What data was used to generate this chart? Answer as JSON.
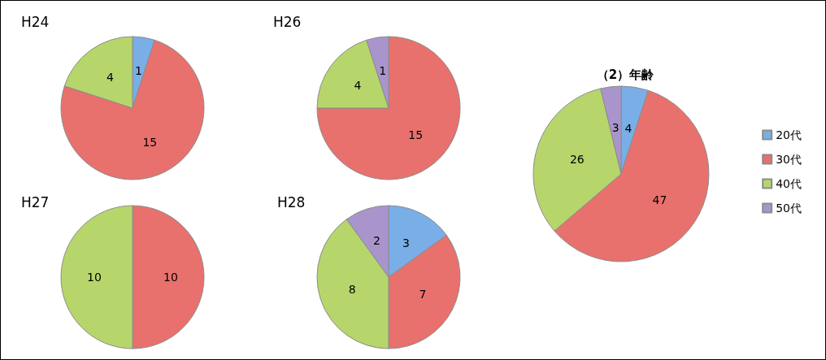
{
  "chart_data": [
    {
      "type": "pie",
      "title": "H24",
      "categories": [
        null,
        null,
        null
      ],
      "values": [
        1,
        15,
        4
      ],
      "colors": [
        "#7aaee6",
        "#e8716d",
        "#b6d66b"
      ],
      "data_labels": true,
      "legend": false
    },
    {
      "type": "pie",
      "title": "H26",
      "categories": [
        null,
        null,
        null
      ],
      "values": [
        15,
        4,
        1
      ],
      "colors": [
        "#e8716d",
        "#b6d66b",
        "#a995cc"
      ],
      "data_labels": true,
      "legend": false
    },
    {
      "type": "pie",
      "title": "H27",
      "categories": [
        null,
        null
      ],
      "values": [
        10,
        10
      ],
      "colors": [
        "#e8716d",
        "#b6d66b"
      ],
      "data_labels": true,
      "legend": false
    },
    {
      "type": "pie",
      "title": "H28",
      "categories": [
        null,
        null,
        null,
        null
      ],
      "values": [
        3,
        7,
        8,
        2
      ],
      "colors": [
        "#7aaee6",
        "#e8716d",
        "#b6d66b",
        "#a995cc"
      ],
      "data_labels": true,
      "legend": false
    },
    {
      "type": "pie",
      "title": "（2）年齢",
      "categories": [
        "20代",
        "30代",
        "40代",
        "50代"
      ],
      "values": [
        4,
        47,
        26,
        3
      ],
      "colors": [
        "#7aaee6",
        "#e8716d",
        "#b6d66b",
        "#a995cc"
      ],
      "data_labels": true,
      "legend": "right"
    }
  ]
}
